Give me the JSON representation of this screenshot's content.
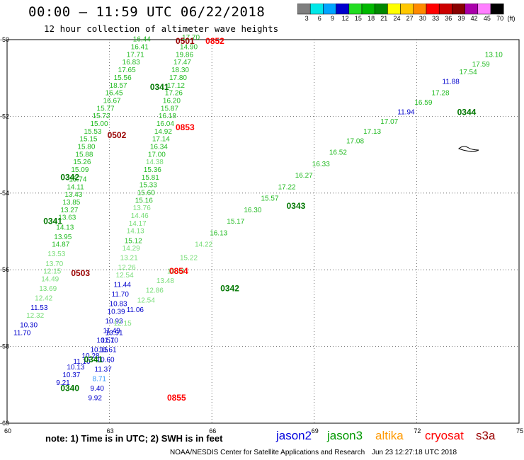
{
  "header": {
    "title": "00:00 – 11:59 UTC 06/22/2018",
    "subtitle": "12 hour collection of altimeter wave heights"
  },
  "legend": {
    "unit": "(ft)",
    "ticks": [
      "3",
      "6",
      "9",
      "12",
      "15",
      "18",
      "21",
      "24",
      "27",
      "30",
      "33",
      "36",
      "39",
      "42",
      "45",
      "70"
    ],
    "colors": [
      "#7f7f7f",
      "#00e8e8",
      "#00a5ff",
      "#0000cd",
      "#22dd22",
      "#00b800",
      "#008800",
      "#ffff00",
      "#ffc800",
      "#ff8a00",
      "#ff0000",
      "#cc0000",
      "#880000",
      "#aa00aa",
      "#ff7fff",
      "#000000"
    ]
  },
  "axes": {
    "x_ticks": [
      "60",
      "63",
      "66",
      "69",
      "72",
      "75"
    ],
    "y_ticks": [
      "-50",
      "-52",
      "-54",
      "-56",
      "-58",
      "-60"
    ]
  },
  "passes": [
    {
      "id": "0501",
      "color": "#990000"
    },
    {
      "id": "0502",
      "color": "#990000"
    },
    {
      "id": "0503",
      "color": "#990000"
    },
    {
      "id": "0852",
      "color": "#ff0000"
    },
    {
      "id": "0853",
      "color": "#ff0000"
    },
    {
      "id": "0854",
      "color": "#ff0000"
    },
    {
      "id": "0855",
      "color": "#ff0000"
    },
    {
      "id": "0340",
      "color": "#007700"
    },
    {
      "id": "0341",
      "color": "#007700"
    },
    {
      "id": "0342",
      "color": "#007700"
    },
    {
      "id": "0343",
      "color": "#007700"
    },
    {
      "id": "0344",
      "color": "#007700"
    }
  ],
  "chart_data": {
    "type": "scatter",
    "xlim": [
      60,
      75
    ],
    "ylim": [
      -60,
      -50
    ],
    "grid": true,
    "points": [
      {
        "lon": 61.25,
        "lat": -50.05,
        "v": "16.44",
        "c": "#22bb22"
      },
      {
        "lon": 61.2,
        "lat": -50.25,
        "v": "16.41",
        "c": "#22bb22"
      },
      {
        "lon": 61.1,
        "lat": -50.45,
        "v": "17.71",
        "c": "#22bb22"
      },
      {
        "lon": 61.0,
        "lat": -50.65,
        "v": "16.83",
        "c": "#22bb22"
      },
      {
        "lon": 60.9,
        "lat": -50.85,
        "v": "17.65",
        "c": "#22bb22"
      },
      {
        "lon": 60.8,
        "lat": -51.05,
        "v": "15.56",
        "c": "#22bb22"
      },
      {
        "lon": 60.7,
        "lat": -51.25,
        "v": "18.57",
        "c": "#22bb22"
      },
      {
        "lon": 60.6,
        "lat": -51.45,
        "v": "16.45",
        "c": "#22bb22"
      },
      {
        "lon": 60.55,
        "lat": -51.65,
        "v": "16.67",
        "c": "#22bb22"
      },
      {
        "lon": 60.4,
        "lat": -51.85,
        "v": "15.77",
        "c": "#22bb22"
      },
      {
        "lon": 60.3,
        "lat": -52.05,
        "v": "15.72",
        "c": "#22bb22"
      },
      {
        "lon": 60.25,
        "lat": -52.25,
        "v": "15.00",
        "c": "#22bb22"
      },
      {
        "lon": 60.1,
        "lat": -52.45,
        "v": "15.53",
        "c": "#22bb22"
      },
      {
        "lon": 60.0,
        "lat": -52.65,
        "v": "15.15",
        "c": "#22bb22"
      },
      {
        "lon": 59.95,
        "lat": -52.85,
        "v": "15.80",
        "c": "#22bb22"
      },
      {
        "lon": 59.9,
        "lat": -53.05,
        "v": "15.88",
        "c": "#22bb22"
      },
      {
        "lon": 59.85,
        "lat": -53.25,
        "v": "15.26",
        "c": "#22bb22"
      },
      {
        "lon": 59.8,
        "lat": -53.45,
        "v": "15.09",
        "c": "#22bb22"
      },
      {
        "lon": 59.75,
        "lat": -53.7,
        "v": "15.74",
        "c": "#22bb22"
      },
      {
        "lon": 59.7,
        "lat": -53.9,
        "v": "14.11",
        "c": "#22bb22"
      },
      {
        "lon": 59.65,
        "lat": -54.1,
        "v": "13.43",
        "c": "#22bb22"
      },
      {
        "lon": 59.6,
        "lat": -54.3,
        "v": "13.85",
        "c": "#22bb22"
      },
      {
        "lon": 59.55,
        "lat": -54.5,
        "v": "13.27",
        "c": "#22bb22"
      },
      {
        "lon": 59.5,
        "lat": -54.7,
        "v": "13.63",
        "c": "#22bb22"
      },
      {
        "lon": 59.45,
        "lat": -54.95,
        "v": "14.13",
        "c": "#22bb22"
      },
      {
        "lon": 59.4,
        "lat": -55.2,
        "v": "13.95",
        "c": "#22bb22"
      },
      {
        "lon": 59.35,
        "lat": -55.4,
        "v": "14.87",
        "c": "#22bb22"
      },
      {
        "lon": 59.25,
        "lat": -55.65,
        "v": "13.53",
        "c": "#77dd77"
      },
      {
        "lon": 59.2,
        "lat": -55.9,
        "v": "13.70",
        "c": "#77dd77"
      },
      {
        "lon": 59.15,
        "lat": -56.1,
        "v": "12.15",
        "c": "#77dd77"
      },
      {
        "lon": 59.1,
        "lat": -56.3,
        "v": "14.49",
        "c": "#77dd77"
      },
      {
        "lon": 59.05,
        "lat": -56.55,
        "v": "13.69",
        "c": "#77dd77"
      },
      {
        "lon": 58.95,
        "lat": -56.8,
        "v": "12.42",
        "c": "#77dd77"
      },
      {
        "lon": 58.85,
        "lat": -57.05,
        "v": "11.53",
        "c": "#0000cc"
      },
      {
        "lon": 58.75,
        "lat": -57.25,
        "v": "12.32",
        "c": "#77dd77"
      },
      {
        "lon": 58.6,
        "lat": -57.5,
        "v": "10.30",
        "c": "#0000cc"
      },
      {
        "lon": 58.45,
        "lat": -57.7,
        "v": "11.70",
        "c": "#0000cc"
      },
      {
        "lon": 62.4,
        "lat": -50.0,
        "v": "17.70",
        "c": "#22bb22"
      },
      {
        "lon": 62.35,
        "lat": -50.25,
        "v": "14.90",
        "c": "#22bb22"
      },
      {
        "lon": 62.25,
        "lat": -50.45,
        "v": "19.86",
        "c": "#22bb22"
      },
      {
        "lon": 62.2,
        "lat": -50.65,
        "v": "17.47",
        "c": "#22bb22"
      },
      {
        "lon": 62.15,
        "lat": -50.85,
        "v": "18.30",
        "c": "#22bb22"
      },
      {
        "lon": 62.1,
        "lat": -51.05,
        "v": "17.80",
        "c": "#22bb22"
      },
      {
        "lon": 62.05,
        "lat": -51.25,
        "v": "17.12",
        "c": "#22bb22"
      },
      {
        "lon": 62.0,
        "lat": -51.45,
        "v": "17.26",
        "c": "#22bb22"
      },
      {
        "lon": 61.95,
        "lat": -51.65,
        "v": "16.20",
        "c": "#22bb22"
      },
      {
        "lon": 61.9,
        "lat": -51.85,
        "v": "15.87",
        "c": "#22bb22"
      },
      {
        "lon": 61.85,
        "lat": -52.05,
        "v": "16.18",
        "c": "#22bb22"
      },
      {
        "lon": 61.8,
        "lat": -52.25,
        "v": "16.04",
        "c": "#22bb22"
      },
      {
        "lon": 61.75,
        "lat": -52.45,
        "v": "14.92",
        "c": "#22bb22"
      },
      {
        "lon": 61.7,
        "lat": -52.65,
        "v": "17.14",
        "c": "#22bb22"
      },
      {
        "lon": 61.65,
        "lat": -52.85,
        "v": "16.34",
        "c": "#22bb22"
      },
      {
        "lon": 61.6,
        "lat": -53.05,
        "v": "17.00",
        "c": "#22bb22"
      },
      {
        "lon": 61.55,
        "lat": -53.25,
        "v": "14.38",
        "c": "#77dd77"
      },
      {
        "lon": 61.5,
        "lat": -53.45,
        "v": "15.36",
        "c": "#22bb22"
      },
      {
        "lon": 61.45,
        "lat": -53.65,
        "v": "15.81",
        "c": "#22bb22"
      },
      {
        "lon": 61.4,
        "lat": -53.85,
        "v": "15.33",
        "c": "#22bb22"
      },
      {
        "lon": 61.35,
        "lat": -54.05,
        "v": "15.60",
        "c": "#22bb22"
      },
      {
        "lon": 61.3,
        "lat": -54.25,
        "v": "15.16",
        "c": "#22bb22"
      },
      {
        "lon": 61.25,
        "lat": -54.45,
        "v": "13.76",
        "c": "#77dd77"
      },
      {
        "lon": 61.2,
        "lat": -54.65,
        "v": "14.46",
        "c": "#77dd77"
      },
      {
        "lon": 61.15,
        "lat": -54.85,
        "v": "14.17",
        "c": "#77dd77"
      },
      {
        "lon": 61.1,
        "lat": -55.05,
        "v": "14.13",
        "c": "#77dd77"
      },
      {
        "lon": 61.05,
        "lat": -55.3,
        "v": "15.12",
        "c": "#22bb22"
      },
      {
        "lon": 61.0,
        "lat": -55.5,
        "v": "14.29",
        "c": "#77dd77"
      },
      {
        "lon": 60.95,
        "lat": -55.75,
        "v": "13.21",
        "c": "#77dd77"
      },
      {
        "lon": 60.9,
        "lat": -56.0,
        "v": "12.26",
        "c": "#77dd77"
      },
      {
        "lon": 60.85,
        "lat": -56.2,
        "v": "12.54",
        "c": "#77dd77"
      },
      {
        "lon": 60.8,
        "lat": -56.45,
        "v": "11.44",
        "c": "#0000cc"
      },
      {
        "lon": 60.75,
        "lat": -56.7,
        "v": "11.70",
        "c": "#0000cc"
      },
      {
        "lon": 60.7,
        "lat": -56.95,
        "v": "10.83",
        "c": "#0000cc"
      },
      {
        "lon": 60.65,
        "lat": -57.15,
        "v": "10.39",
        "c": "#0000cc"
      },
      {
        "lon": 60.6,
        "lat": -57.4,
        "v": "10.93",
        "c": "#0000cc"
      },
      {
        "lon": 60.55,
        "lat": -57.65,
        "v": "11.49",
        "c": "#0000cc"
      },
      {
        "lon": 60.5,
        "lat": -57.9,
        "v": "11.70",
        "c": "#0000cc"
      },
      {
        "lon": 60.45,
        "lat": -58.15,
        "v": "10.61",
        "c": "#0000cc"
      },
      {
        "lon": 60.4,
        "lat": -58.4,
        "v": "10.60",
        "c": "#0000cc"
      },
      {
        "lon": 60.35,
        "lat": -58.65,
        "v": "11.37",
        "c": "#0000cc"
      },
      {
        "lon": 60.3,
        "lat": -58.9,
        "v": "8.71",
        "c": "#3399ff"
      },
      {
        "lon": 60.25,
        "lat": -59.15,
        "v": "9.40",
        "c": "#0000cc"
      },
      {
        "lon": 60.2,
        "lat": -59.4,
        "v": "9.92",
        "c": "#0000cc"
      },
      {
        "lon": 59.45,
        "lat": -59.0,
        "v": "9.21",
        "c": "#0000cc"
      },
      {
        "lon": 59.6,
        "lat": -58.8,
        "v": "10.37",
        "c": "#0000cc"
      },
      {
        "lon": 59.7,
        "lat": -58.6,
        "v": "10.13",
        "c": "#0000cc"
      },
      {
        "lon": 59.85,
        "lat": -58.45,
        "v": "11.10",
        "c": "#0000cc"
      },
      {
        "lon": 60.05,
        "lat": -58.3,
        "v": "10.28",
        "c": "#0000cc"
      },
      {
        "lon": 60.25,
        "lat": -58.15,
        "v": "10.15",
        "c": "#0000cc"
      },
      {
        "lon": 60.4,
        "lat": -57.9,
        "v": "10.51",
        "c": "#0000cc"
      },
      {
        "lon": 60.6,
        "lat": -57.7,
        "v": "10.91",
        "c": "#0000cc"
      },
      {
        "lon": 60.8,
        "lat": -57.45,
        "v": "12.15",
        "c": "#77dd77"
      },
      {
        "lon": 61.1,
        "lat": -57.1,
        "v": "11.06",
        "c": "#0000cc"
      },
      {
        "lon": 61.35,
        "lat": -56.85,
        "v": "12.54",
        "c": "#77dd77"
      },
      {
        "lon": 61.55,
        "lat": -56.6,
        "v": "12.86",
        "c": "#77dd77"
      },
      {
        "lon": 61.8,
        "lat": -56.35,
        "v": "13.48",
        "c": "#77dd77"
      },
      {
        "lon": 62.05,
        "lat": -56.1,
        "v": "13.43",
        "c": "#77dd77"
      },
      {
        "lon": 62.35,
        "lat": -55.75,
        "v": "15.22",
        "c": "#77dd77"
      },
      {
        "lon": 62.7,
        "lat": -55.4,
        "v": "14.22",
        "c": "#77dd77"
      },
      {
        "lon": 63.05,
        "lat": -55.1,
        "v": "16.13",
        "c": "#22bb22"
      },
      {
        "lon": 63.45,
        "lat": -54.8,
        "v": "15.17",
        "c": "#22bb22"
      },
      {
        "lon": 63.85,
        "lat": -54.5,
        "v": "16.30",
        "c": "#22bb22"
      },
      {
        "lon": 64.25,
        "lat": -54.2,
        "v": "15.57",
        "c": "#22bb22"
      },
      {
        "lon": 64.65,
        "lat": -53.9,
        "v": "17.22",
        "c": "#22bb22"
      },
      {
        "lon": 65.05,
        "lat": -53.6,
        "v": "16.27",
        "c": "#22bb22"
      },
      {
        "lon": 65.45,
        "lat": -53.3,
        "v": "16.33",
        "c": "#22bb22"
      },
      {
        "lon": 65.85,
        "lat": -53.0,
        "v": "16.52",
        "c": "#22bb22"
      },
      {
        "lon": 66.25,
        "lat": -52.7,
        "v": "17.08",
        "c": "#22bb22"
      },
      {
        "lon": 66.65,
        "lat": -52.45,
        "v": "17.13",
        "c": "#22bb22"
      },
      {
        "lon": 67.05,
        "lat": -52.2,
        "v": "17.07",
        "c": "#22bb22"
      },
      {
        "lon": 67.45,
        "lat": -51.95,
        "v": "11.94",
        "c": "#0000cc"
      },
      {
        "lon": 67.85,
        "lat": -51.7,
        "v": "16.59",
        "c": "#22bb22"
      },
      {
        "lon": 68.25,
        "lat": -51.45,
        "v": "17.28",
        "c": "#22bb22"
      },
      {
        "lon": 68.5,
        "lat": -51.15,
        "v": "11.88",
        "c": "#0000cc"
      },
      {
        "lon": 68.9,
        "lat": -50.9,
        "v": "17.54",
        "c": "#22bb22"
      },
      {
        "lon": 69.2,
        "lat": -50.7,
        "v": "17.59",
        "c": "#22bb22"
      },
      {
        "lon": 69.5,
        "lat": -50.45,
        "v": "13.10",
        "c": "#22bb22"
      }
    ],
    "labels": [
      {
        "text": "0501",
        "lon": 62.25,
        "lat": -50.0,
        "c": "#990000"
      },
      {
        "text": "0852",
        "lon": 62.95,
        "lat": -50.0,
        "c": "#ff0000"
      },
      {
        "text": "0502",
        "lon": 60.65,
        "lat": -52.45,
        "c": "#990000"
      },
      {
        "text": "0853",
        "lon": 62.25,
        "lat": -52.25,
        "c": "#ff0000"
      },
      {
        "text": "0342",
        "lon": 59.55,
        "lat": -53.55,
        "c": "#007700"
      },
      {
        "text": "0341",
        "lon": 59.15,
        "lat": -54.7,
        "c": "#007700"
      },
      {
        "text": "0503",
        "lon": 59.8,
        "lat": -56.05,
        "c": "#990000"
      },
      {
        "text": "0854",
        "lon": 62.1,
        "lat": -56.0,
        "c": "#ff0000"
      },
      {
        "text": "0342",
        "lon": 63.3,
        "lat": -56.45,
        "c": "#007700"
      },
      {
        "text": "0343",
        "lon": 64.85,
        "lat": -54.3,
        "c": "#007700"
      },
      {
        "text": "0344",
        "lon": 68.85,
        "lat": -51.85,
        "c": "#007700"
      },
      {
        "text": "0341",
        "lon": 60.1,
        "lat": -58.3,
        "c": "#007700"
      },
      {
        "text": "0340",
        "lon": 59.55,
        "lat": -59.05,
        "c": "#007700"
      },
      {
        "text": "0855",
        "lon": 62.05,
        "lat": -59.3,
        "c": "#ff0000"
      },
      {
        "text": "0341",
        "lon": 61.65,
        "lat": -51.2,
        "c": "#007700"
      }
    ]
  },
  "footer": {
    "note": "note:  1) Time is in UTC;  2) SWH is in feet",
    "satellites": [
      {
        "name": "jason2",
        "color": "#0000dd"
      },
      {
        "name": "jason3",
        "color": "#009900"
      },
      {
        "name": "altika",
        "color": "#ff9900"
      },
      {
        "name": "cryosat",
        "color": "#ff0000"
      },
      {
        "name": "s3a",
        "color": "#990000"
      }
    ],
    "credit": "NOAA/NESDIS Center for Satellite Applications and Research",
    "timestamp": "Jun 23 12:27:18 UTC 2018"
  }
}
